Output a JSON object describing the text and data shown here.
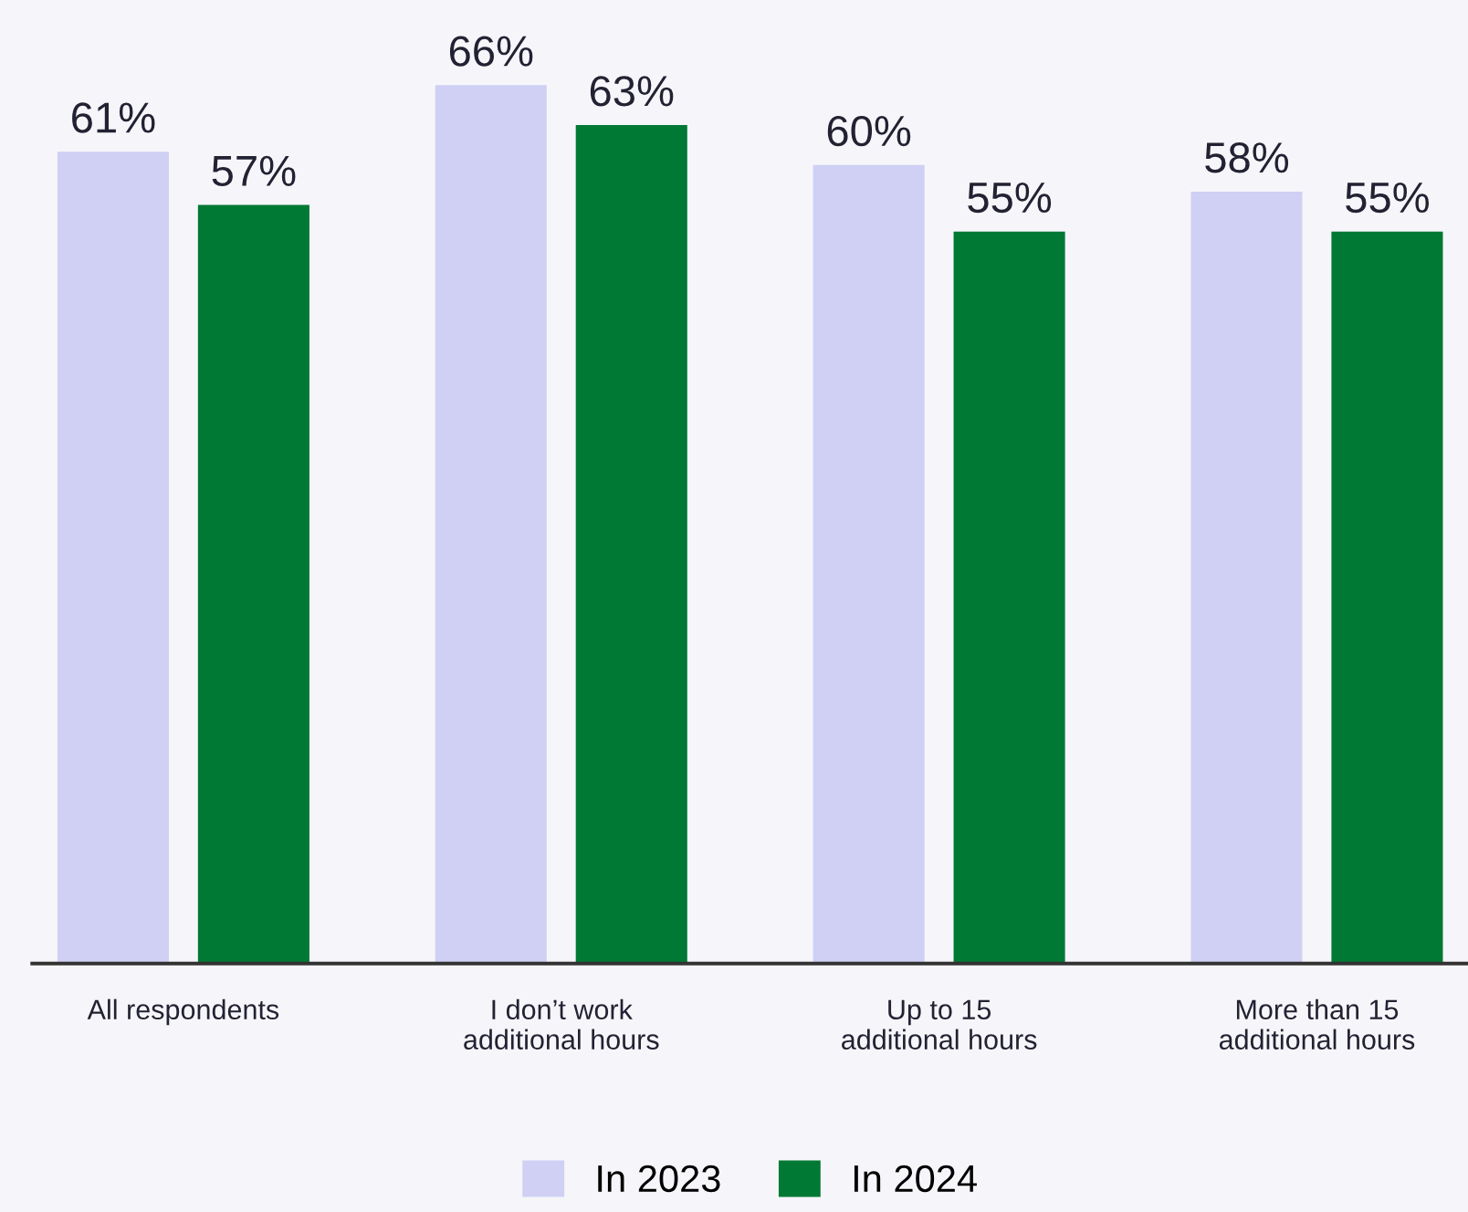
{
  "chart_data": {
    "type": "bar",
    "categories": [
      "All respondents",
      "I don’t work\nadditional hours",
      "Up to 15\nadditional hours",
      "More than 15\nadditional hours"
    ],
    "series": [
      {
        "name": "In 2023",
        "color": "#cfd0f4",
        "values": [
          61,
          66,
          60,
          58
        ],
        "value_labels": [
          "61%",
          "66%",
          "60%",
          "58%"
        ]
      },
      {
        "name": "In 2024",
        "color": "#007934",
        "values": [
          57,
          63,
          55,
          55
        ],
        "value_labels": [
          "57%",
          "63%",
          "55%",
          "55%"
        ]
      }
    ],
    "legend": "bottom",
    "grid": false,
    "tick_labels": "x"
  }
}
